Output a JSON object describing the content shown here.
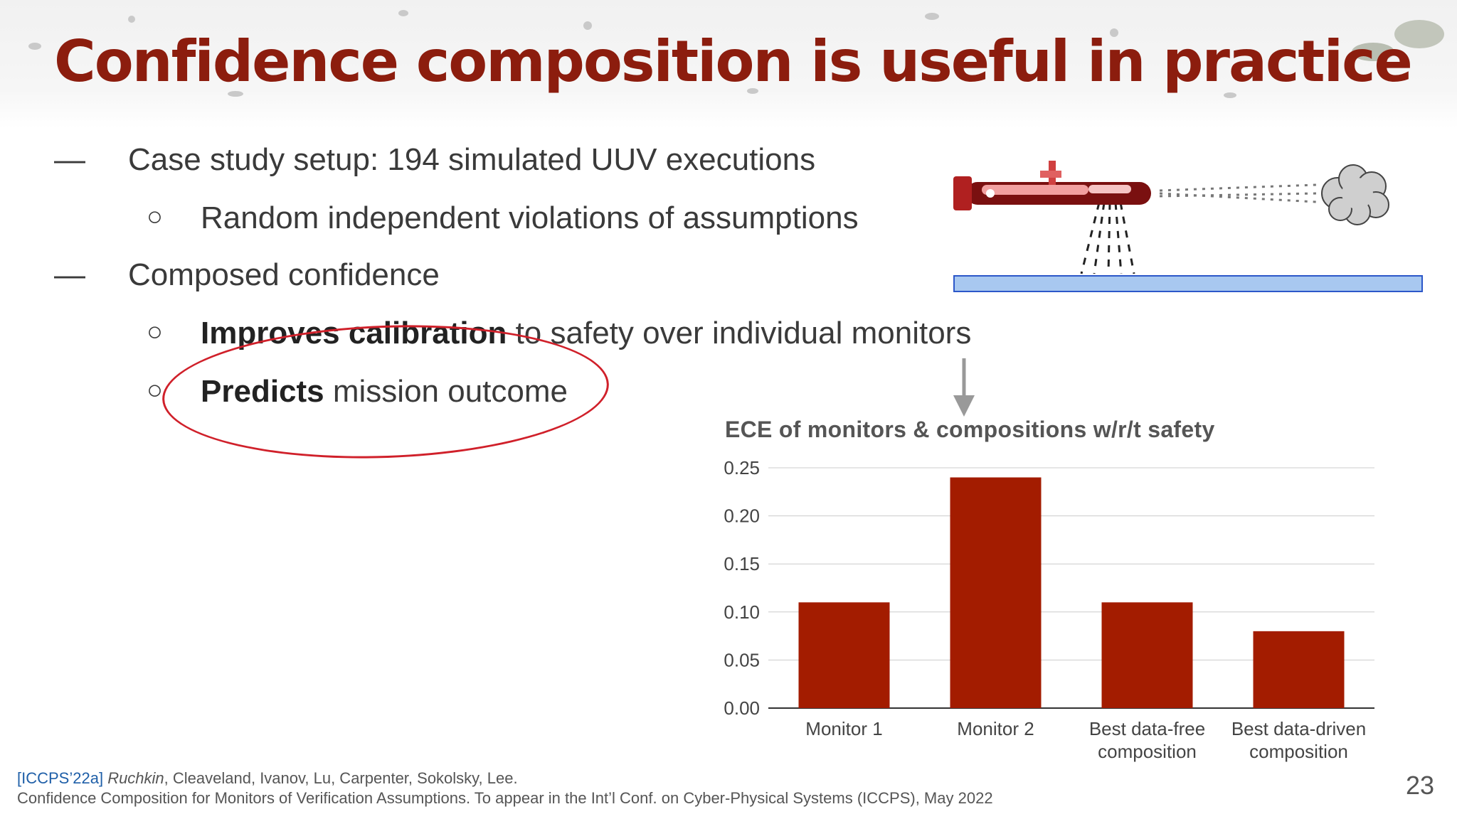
{
  "slide": {
    "title": "Confidence composition is useful in practice",
    "page_number": "23"
  },
  "bullets": [
    {
      "marker": "—",
      "text": "Case study setup: 194 simulated UUV executions"
    },
    {
      "marker": "○",
      "text": "Random independent violations of assumptions"
    },
    {
      "marker": "—",
      "text": "Composed confidence"
    },
    {
      "marker": "○",
      "bold": "Improves calibration",
      "text": " to safety over individual monitors"
    },
    {
      "marker": "○",
      "bold": "Predicts",
      "text": " mission outcome"
    }
  ],
  "footer": {
    "tag": "[ICCPS’22a]",
    "lead_author": "Ruchkin",
    "authors": ", Cleaveland, Ivanov, Lu, Carpenter, Sokolsky, Lee.",
    "citation": "Confidence Composition for Monitors of Verification Assumptions. To appear in the Int’l Conf. on Cyber-Physical Systems (ICCPS), May 2022"
  },
  "colors": {
    "title": "#8c1d0e",
    "bar": "#a31c00",
    "ellipse": "#d0202a",
    "seafloor": "#a8c8f0"
  },
  "chart_data": {
    "type": "bar",
    "title": "ECE of monitors & compositions w/r/t safety",
    "categories": [
      [
        "Monitor 1"
      ],
      [
        "Monitor 2"
      ],
      [
        "Best data-free",
        "composition"
      ],
      [
        "Best data-driven",
        "composition"
      ]
    ],
    "values": [
      0.11,
      0.24,
      0.11,
      0.08
    ],
    "ylim": [
      0,
      0.25
    ],
    "yticks": [
      "0.00",
      "0.05",
      "0.10",
      "0.15",
      "0.20",
      "0.25"
    ],
    "grid": true,
    "xlabel": "",
    "ylabel": ""
  }
}
